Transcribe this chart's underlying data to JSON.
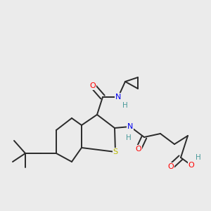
{
  "bg_color": "#ebebeb",
  "bond_color": "#2a2a2a",
  "atom_colors": {
    "O": "#ff0000",
    "N": "#0000ee",
    "S": "#bbbb00",
    "H": "#4a9a9a",
    "C": "#2a2a2a"
  },
  "lw": 1.4
}
